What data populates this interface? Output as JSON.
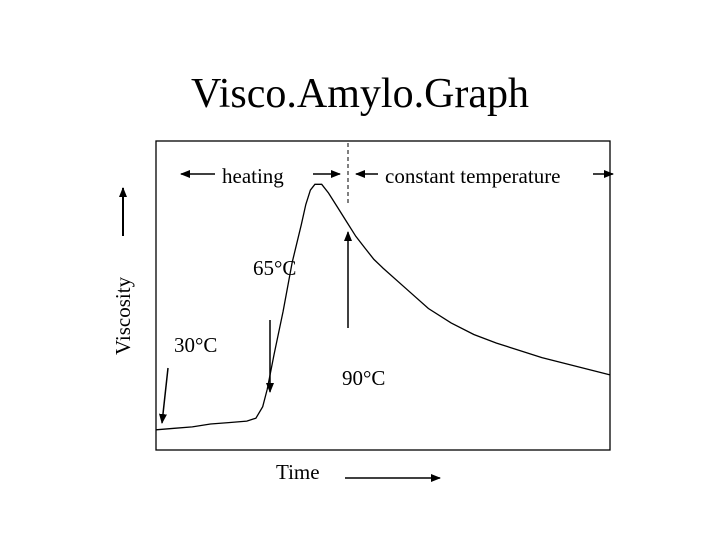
{
  "slide": {
    "title": "Visco.Amylo.Graph"
  },
  "chart_data": {
    "type": "line",
    "title": "Visco.Amylo.Graph",
    "xlabel": "Time",
    "ylabel": "Viscosity",
    "phases": {
      "heating": "heating",
      "constant": "constant temperature"
    },
    "annotations": {
      "t30": "30°C",
      "t65": "65°C",
      "t90": "90°C"
    },
    "curve": {
      "x": [
        0,
        4,
        8,
        12,
        16,
        20,
        22,
        23.5,
        24.5,
        26,
        28,
        30,
        32,
        33,
        34,
        35,
        36.5,
        38,
        40,
        42,
        44,
        46,
        48,
        50,
        55,
        60,
        65,
        70,
        75,
        80,
        85,
        90,
        95,
        100
      ],
      "y": [
        4,
        4.5,
        5,
        6,
        6.5,
        7,
        8,
        12,
        18,
        30,
        45,
        62,
        75,
        82,
        87,
        89,
        89,
        86,
        81,
        76,
        71,
        67,
        63,
        60,
        53,
        46,
        41,
        37,
        34,
        31.5,
        29,
        27,
        25,
        23
      ]
    },
    "xlim": [
      0,
      100
    ],
    "ylim": [
      -3,
      104
    ],
    "grid": false,
    "legend": "none"
  }
}
